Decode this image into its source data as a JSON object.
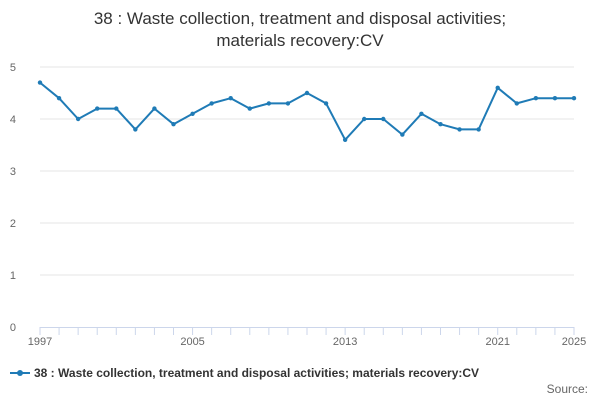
{
  "colors": {
    "series": "#1f7bb6",
    "grid": "#e6e6e6",
    "axis": "#ccd6eb",
    "text": "#333333",
    "muted": "#666666"
  },
  "legend": {
    "icon": "line-with-dot-icon"
  },
  "source_label": "Source:",
  "chart_data": {
    "type": "line",
    "title_lines": [
      "38 : Waste collection, treatment and disposal activities;",
      "materials recovery:CV"
    ],
    "xlabel": "",
    "ylabel": "",
    "x": [
      1997,
      1998,
      1999,
      2000,
      2001,
      2002,
      2003,
      2004,
      2005,
      2006,
      2007,
      2008,
      2009,
      2010,
      2011,
      2012,
      2013,
      2014,
      2015,
      2016,
      2017,
      2018,
      2019,
      2020,
      2021,
      2022,
      2023,
      2024,
      2025
    ],
    "series": [
      {
        "name": "38 : Waste collection, treatment and disposal activities; materials recovery:CV",
        "values": [
          4.7,
          4.4,
          4.0,
          4.2,
          4.2,
          3.8,
          4.2,
          3.9,
          4.1,
          4.3,
          4.4,
          4.2,
          4.3,
          4.3,
          4.5,
          4.3,
          3.6,
          4.0,
          4.0,
          3.7,
          4.1,
          3.9,
          3.8,
          3.8,
          4.6,
          4.3,
          4.4,
          4.4,
          4.4
        ]
      }
    ],
    "xticks": [
      "1997",
      "2005",
      "2013",
      "2021",
      "2025"
    ],
    "yticks": [
      "0",
      "1",
      "2",
      "3",
      "4",
      "5"
    ],
    "ylim": [
      0,
      5
    ],
    "xlim": [
      1997,
      2025
    ],
    "grid": true,
    "legend_position": "bottom-left"
  }
}
